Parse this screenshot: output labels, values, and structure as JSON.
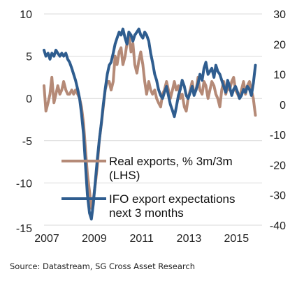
{
  "chart_data": {
    "type": "line",
    "source": "Source: Datastream, SG Cross Asset Research",
    "x_ticks": [
      "2007",
      "2009",
      "2011",
      "2013",
      "2015"
    ],
    "x_range": [
      2007,
      2016.2
    ],
    "left_axis": {
      "ticks": [
        "10",
        "5",
        "0",
        "-5",
        "-10",
        "-15"
      ],
      "ylim": [
        -15,
        10
      ]
    },
    "right_axis": {
      "ticks": [
        "30",
        "20",
        "10",
        "0",
        "-10",
        "-20",
        "-30",
        "-40"
      ],
      "ylim": [
        -40,
        30
      ]
    },
    "grid": true,
    "legend": [
      {
        "lines": [
          "Real exports, % 3m/3m",
          "(LHS)"
        ]
      },
      {
        "lines": [
          "IFO export expectations",
          "next 3 months"
        ]
      }
    ],
    "colors": {
      "real_exports": "#b58a77",
      "ifo": "#2f5d8f",
      "grid": "#d9d9d9"
    },
    "series": [
      {
        "name": "Real exports, % 3m/3m (LHS)",
        "axis": "left",
        "x": [
          2007.0,
          2007.08,
          2007.17,
          2007.25,
          2007.33,
          2007.42,
          2007.5,
          2007.58,
          2007.67,
          2007.75,
          2007.83,
          2007.92,
          2008.0,
          2008.08,
          2008.17,
          2008.25,
          2008.33,
          2008.42,
          2008.5,
          2008.58,
          2008.67,
          2008.75,
          2008.83,
          2008.92,
          2009.0,
          2009.08,
          2009.17,
          2009.25,
          2009.33,
          2009.42,
          2009.5,
          2009.58,
          2009.67,
          2009.75,
          2009.83,
          2009.92,
          2010.0,
          2010.08,
          2010.17,
          2010.25,
          2010.33,
          2010.42,
          2010.5,
          2010.58,
          2010.67,
          2010.75,
          2010.83,
          2010.92,
          2011.0,
          2011.08,
          2011.17,
          2011.25,
          2011.33,
          2011.42,
          2011.5,
          2011.58,
          2011.67,
          2011.75,
          2011.83,
          2011.92,
          2012.0,
          2012.08,
          2012.17,
          2012.25,
          2012.33,
          2012.42,
          2012.5,
          2012.58,
          2012.67,
          2012.75,
          2012.83,
          2012.92,
          2013.0,
          2013.08,
          2013.17,
          2013.25,
          2013.33,
          2013.42,
          2013.5,
          2013.58,
          2013.67,
          2013.75,
          2013.83,
          2013.92,
          2014.0,
          2014.08,
          2014.17,
          2014.25,
          2014.33,
          2014.42,
          2014.5,
          2014.58,
          2014.67,
          2014.75,
          2014.83,
          2014.92,
          2015.0,
          2015.08,
          2015.17,
          2015.25,
          2015.33,
          2015.42,
          2015.5,
          2015.58,
          2015.67,
          2015.75,
          2015.83,
          2015.92
        ],
        "values": [
          1.5,
          -1.5,
          -0.5,
          0.5,
          2.5,
          -0.5,
          0.5,
          1.5,
          0.5,
          1.0,
          2.0,
          1.0,
          0.5,
          0.5,
          1.0,
          0.5,
          1.0,
          0.5,
          0.0,
          -1.0,
          -3.0,
          -6.0,
          -9.0,
          -11.0,
          -13.0,
          -12.0,
          -10.0,
          -8.0,
          -5.0,
          -3.0,
          -1.0,
          1.0,
          2.0,
          2.0,
          1.0,
          2.0,
          5.0,
          4.0,
          5.5,
          6.0,
          4.0,
          5.0,
          6.5,
          7.5,
          5.5,
          6.5,
          4.0,
          3.0,
          4.5,
          5.5,
          4.0,
          2.0,
          0.5,
          2.0,
          1.0,
          0.5,
          1.0,
          0.0,
          -0.5,
          -1.0,
          0.5,
          1.0,
          2.0,
          1.0,
          0.0,
          1.0,
          2.0,
          1.0,
          1.5,
          0.0,
          0.5,
          -1.0,
          -1.5,
          0.0,
          1.0,
          2.0,
          0.5,
          1.0,
          2.5,
          1.0,
          0.5,
          2.0,
          1.5,
          0.0,
          1.0,
          2.0,
          1.5,
          0.5,
          0.0,
          -1.0,
          1.0,
          2.0,
          0.5,
          1.5,
          1.0,
          2.0,
          2.5,
          1.0,
          0.5,
          0.0,
          1.0,
          2.0,
          0.5,
          1.5,
          2.0,
          1.0,
          0.0,
          -2.0
        ]
      },
      {
        "name": "IFO export expectations next 3 months",
        "axis": "right",
        "x": [
          2007.0,
          2007.08,
          2007.17,
          2007.25,
          2007.33,
          2007.42,
          2007.5,
          2007.58,
          2007.67,
          2007.75,
          2007.83,
          2007.92,
          2008.0,
          2008.08,
          2008.17,
          2008.25,
          2008.33,
          2008.42,
          2008.5,
          2008.58,
          2008.67,
          2008.75,
          2008.83,
          2008.92,
          2009.0,
          2009.08,
          2009.17,
          2009.25,
          2009.33,
          2009.42,
          2009.5,
          2009.58,
          2009.67,
          2009.75,
          2009.83,
          2009.92,
          2010.0,
          2010.08,
          2010.17,
          2010.25,
          2010.33,
          2010.42,
          2010.5,
          2010.58,
          2010.67,
          2010.75,
          2010.83,
          2010.92,
          2011.0,
          2011.08,
          2011.17,
          2011.25,
          2011.33,
          2011.42,
          2011.5,
          2011.58,
          2011.67,
          2011.75,
          2011.83,
          2011.92,
          2012.0,
          2012.08,
          2012.17,
          2012.25,
          2012.33,
          2012.42,
          2012.5,
          2012.58,
          2012.67,
          2012.75,
          2012.83,
          2012.92,
          2013.0,
          2013.08,
          2013.17,
          2013.25,
          2013.33,
          2013.42,
          2013.5,
          2013.58,
          2013.67,
          2013.75,
          2013.83,
          2013.92,
          2014.0,
          2014.08,
          2014.17,
          2014.25,
          2014.33,
          2014.42,
          2014.5,
          2014.58,
          2014.67,
          2014.75,
          2014.83,
          2014.92,
          2015.0,
          2015.08,
          2015.17,
          2015.25,
          2015.33,
          2015.42,
          2015.5,
          2015.58,
          2015.67,
          2015.75,
          2015.83,
          2015.92
        ],
        "values": [
          18,
          16,
          17,
          15,
          17,
          16,
          18,
          17,
          16,
          17,
          16,
          17,
          15,
          14,
          12,
          10,
          8,
          5,
          2,
          -3,
          -10,
          -20,
          -30,
          -36,
          -38,
          -33,
          -25,
          -18,
          -12,
          -6,
          0,
          5,
          10,
          13,
          14,
          17,
          20,
          22,
          24,
          23,
          25,
          22,
          20,
          24,
          23,
          21,
          23,
          24,
          25,
          23,
          22,
          24,
          23,
          21,
          17,
          14,
          10,
          8,
          5,
          3,
          2,
          4,
          6,
          3,
          0,
          -2,
          -4,
          -1,
          3,
          5,
          8,
          6,
          3,
          2,
          4,
          6,
          3,
          5,
          7,
          10,
          8,
          12,
          14,
          10,
          11,
          12,
          9,
          13,
          11,
          10,
          8,
          6,
          4,
          8,
          6,
          3,
          5,
          6,
          4,
          2,
          3,
          5,
          4,
          6,
          5,
          3,
          7,
          13
        ]
      }
    ]
  }
}
